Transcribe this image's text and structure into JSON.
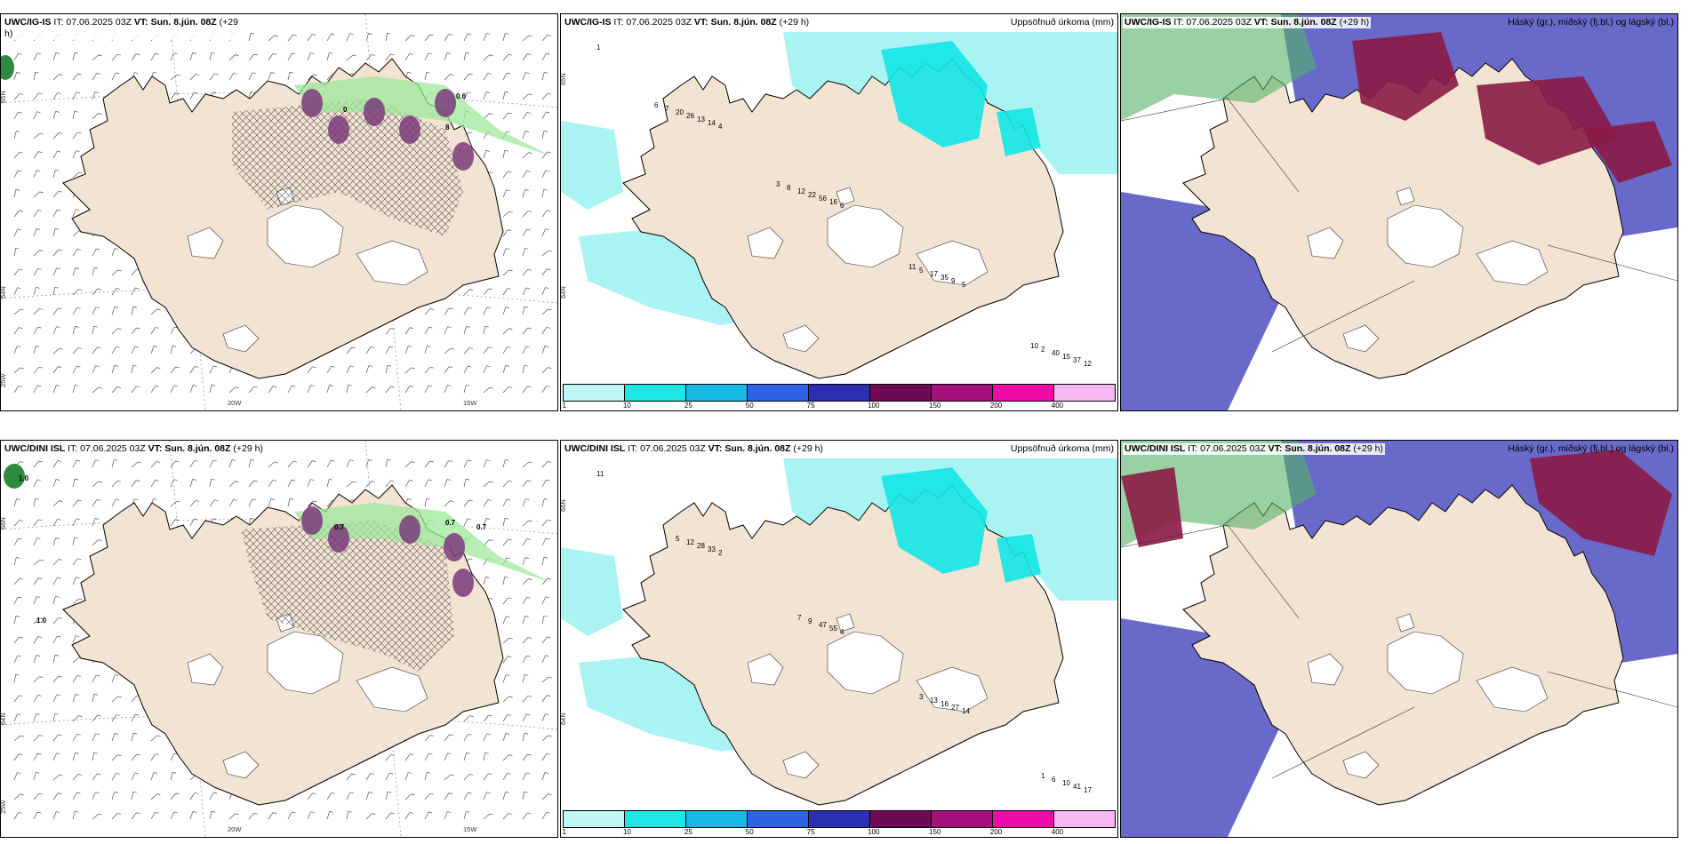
{
  "colors": {
    "land": "#f2e3d2",
    "sea": "#ffffff",
    "precip_light": "#aaf3f3",
    "precip_mid": "#13e6e6",
    "green": "#9ee89b",
    "purple": "#7a3a7a",
    "cloud_high": "#8b1a45",
    "cloud_mid": "#4e4fc0",
    "cloud_low_green": "#55b067"
  },
  "colorbar": {
    "colors": [
      "#bff5f5",
      "#1ee6e6",
      "#19b9e6",
      "#2e63e6",
      "#2b2fb0",
      "#6d0a54",
      "#a5117a",
      "#ef0ba8",
      "#f5b7f2"
    ],
    "ticks": [
      "1",
      "10",
      "25",
      "50",
      "75",
      "100",
      "150",
      "200",
      "400"
    ]
  },
  "panels": [
    {
      "model": "UWC/IG-IS",
      "it_label": "IT: 07.06.2025 03Z",
      "vt_label": "VT: Sun. 8.jún. 08Z",
      "lead": "(+29",
      "lead_wrap": "h)",
      "right_label": "",
      "kind": "wind",
      "values": [
        "0",
        "0.6",
        "8"
      ],
      "lon_labels": [
        "20W",
        "15W"
      ],
      "lat_labels": [
        "65N",
        "64N",
        "25W"
      ]
    },
    {
      "model": "UWC/IG-IS",
      "it_label": "IT: 07.06.2025 03Z",
      "vt_label": "VT: Sun. 8.jún. 08Z",
      "lead": "(+29 h)",
      "right_label": "Uppsöfnuð úrkoma (mm)",
      "kind": "precip",
      "values": [
        "1",
        "4",
        "6",
        "5",
        "12",
        "14",
        "16",
        "9",
        "37",
        "13",
        "56",
        "35",
        "15",
        "26",
        "22",
        "17",
        "40",
        "20",
        "12",
        "5",
        "2",
        "7",
        "8",
        "11",
        "10",
        "6",
        "3"
      ],
      "lat_labels": [
        "65N",
        "64N"
      ]
    },
    {
      "model": "UWC/IG-IS",
      "it_label": "IT: 07.06.2025 03Z",
      "vt_label": "VT: Sun. 8.jún. 08Z",
      "lead": "(+29 h)",
      "right_label": "Háský (gr.), miðský (fj.bl.) og lágský (bl.)",
      "kind": "cloud"
    },
    {
      "model": "UWC/DINI ISL",
      "it_label": "IT: 07.06.2025 03Z",
      "vt_label": "VT: Sun. 8.jún. 08Z",
      "lead": "(+29 h)",
      "right_label": "",
      "kind": "wind",
      "values": [
        "1.0",
        "0.7",
        "0.7",
        "1.0",
        "0.7"
      ],
      "lon_labels": [
        "20W",
        "15W"
      ],
      "lat_labels": [
        "66N",
        "64N",
        "25W"
      ]
    },
    {
      "model": "UWC/DINI ISL",
      "it_label": "IT: 07.06.2025 03Z",
      "vt_label": "VT: Sun. 8.jún. 08Z",
      "lead": "(+29 h)",
      "right_label": "Uppsöfnuð úrkoma (mm)",
      "kind": "precip",
      "values": [
        "11",
        "2",
        "4",
        "14",
        "17",
        "33",
        "55",
        "27",
        "41",
        "28",
        "47",
        "16",
        "10",
        "12",
        "9",
        "13",
        "6",
        "5",
        "7",
        "3",
        "1"
      ],
      "lat_labels": [
        "66N",
        "64N"
      ]
    },
    {
      "model": "UWC/DINI ISL",
      "it_label": "IT: 07.06.2025 03Z",
      "vt_label": "VT: Sun. 8.jún. 08Z",
      "lead": "(+29 h)",
      "right_label": "Háský (gr.), miðský (fj.bl.) og lágský (bl.)",
      "kind": "cloud"
    }
  ]
}
